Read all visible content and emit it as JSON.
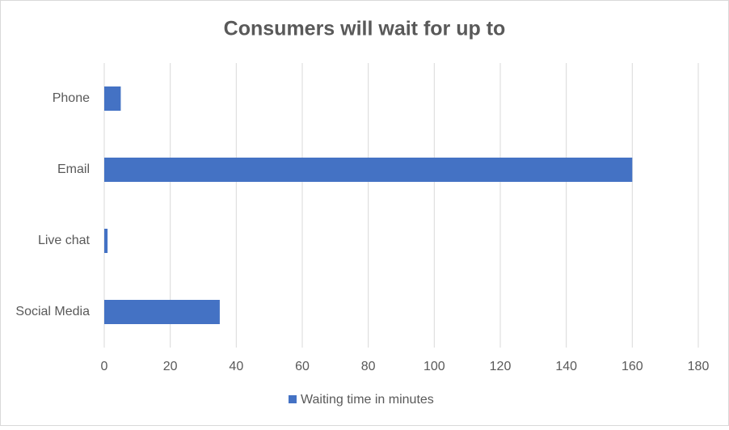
{
  "chart_data": {
    "type": "bar",
    "orientation": "horizontal",
    "title": "Consumers will wait for up to",
    "categories": [
      "Phone",
      "Email",
      "Live chat",
      "Social Media"
    ],
    "series": [
      {
        "name": "Waiting time in minutes",
        "color": "#4472c4",
        "values": [
          5,
          160,
          1,
          35
        ]
      }
    ],
    "xlim": [
      0,
      180
    ],
    "xticks": [
      0,
      20,
      40,
      60,
      80,
      100,
      120,
      140,
      160,
      180
    ],
    "grid": true,
    "legend": "bottom"
  }
}
